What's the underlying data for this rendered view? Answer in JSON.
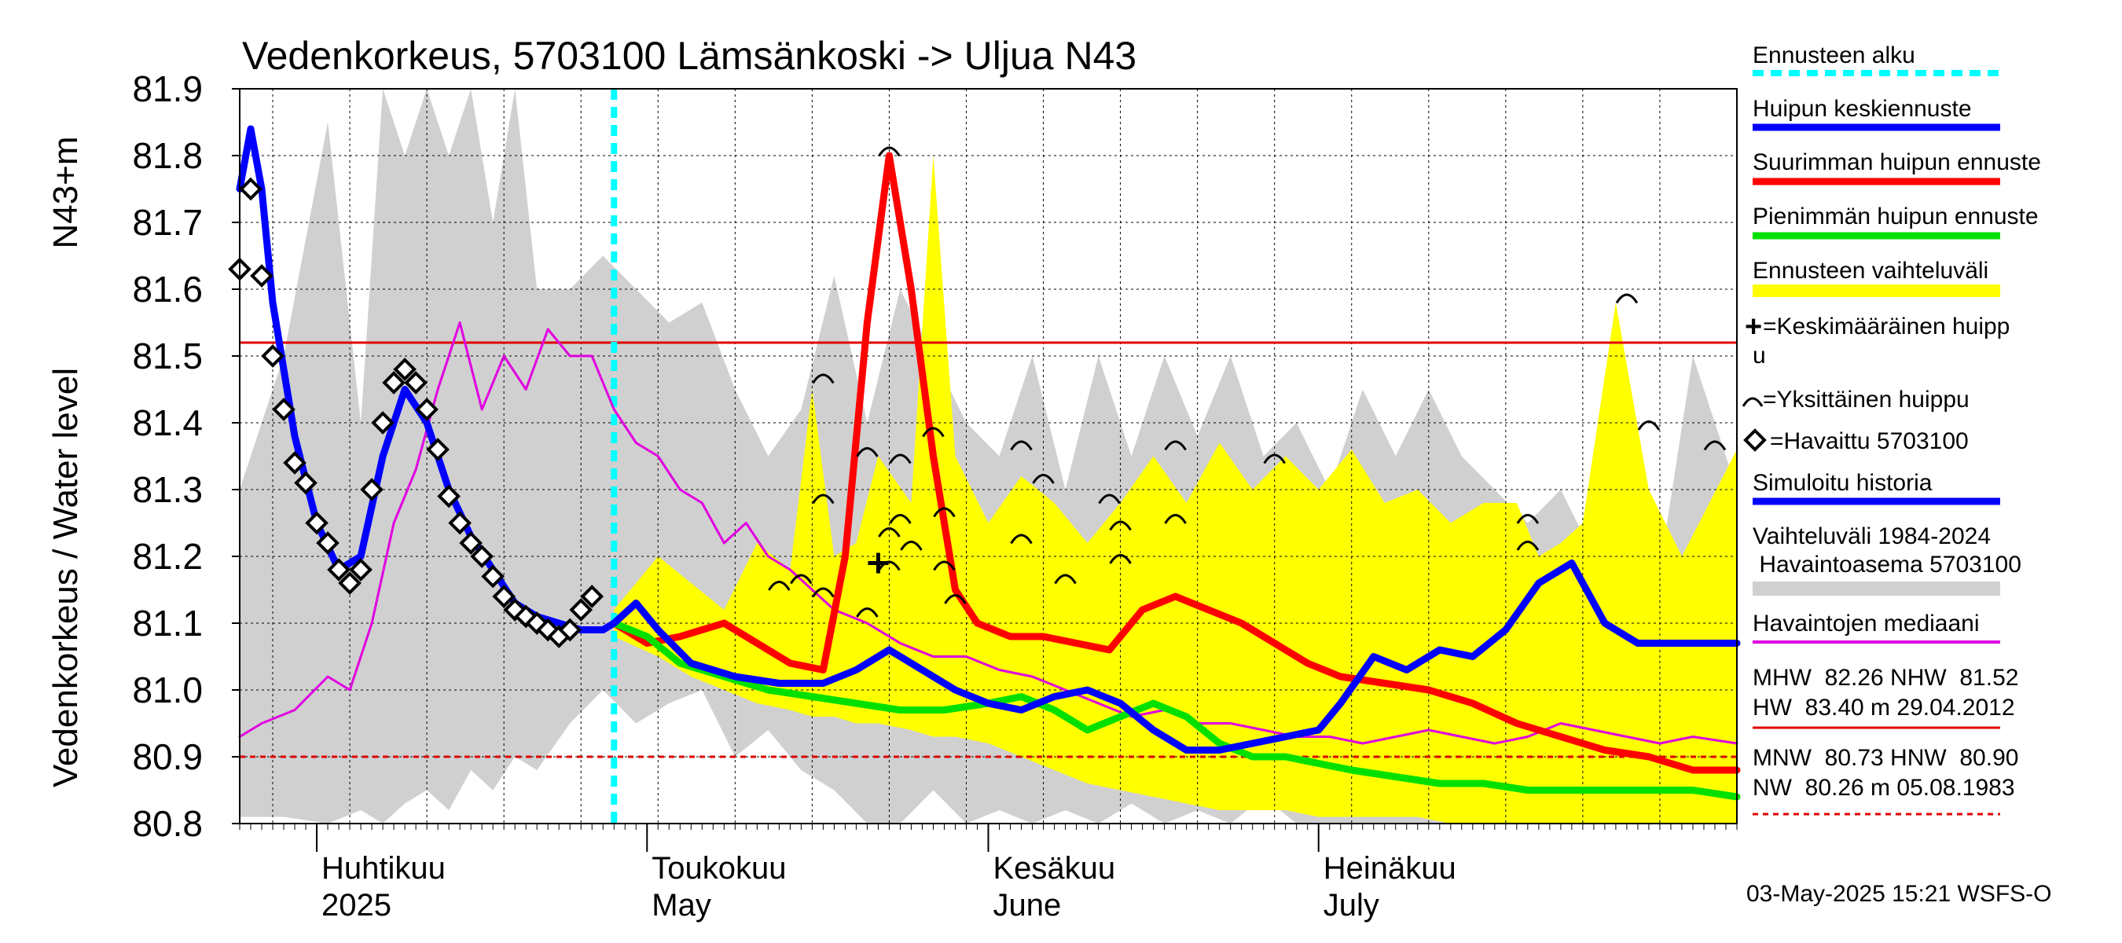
{
  "chart_data": {
    "type": "line",
    "title": "Vedenkorkeus, 5703100 Lämsänkoski -> Uljua N43",
    "ylabel_left": "Vedenkorkeus / Water level",
    "ylabel_unit": "N43+m",
    "ylim": [
      80.8,
      81.9
    ],
    "yticks": [
      80.8,
      80.9,
      81.0,
      81.1,
      81.2,
      81.3,
      81.4,
      81.5,
      81.6,
      81.7,
      81.8,
      81.9
    ],
    "ytick_labels": [
      "80.8",
      "80.9",
      "81.0",
      "81.1",
      "81.2",
      "81.3",
      "81.4",
      "81.5",
      "81.6",
      "81.7",
      "81.8",
      "81.9"
    ],
    "xlim": [
      "2025-03-25",
      "2025-08-08"
    ],
    "x_axis_labels": [
      {
        "date": "2025-04-01",
        "fi": "Huhtikuu",
        "en": "2025"
      },
      {
        "date": "2025-05-01",
        "fi": "Toukokuu",
        "en": "May"
      },
      {
        "date": "2025-06-01",
        "fi": "Kesäkuu",
        "en": "June"
      },
      {
        "date": "2025-07-01",
        "fi": "Heinäkuu",
        "en": "July"
      }
    ],
    "forecast_start": "2025-04-28",
    "grid": true,
    "reference_lines": [
      {
        "name": "NHW",
        "value": 81.52,
        "style": "solid",
        "color": "#e00000"
      },
      {
        "name": "HNW",
        "value": 80.9,
        "style": "dashed",
        "color": "#e00000"
      }
    ],
    "series": [
      {
        "name": "Vaihteluväli 1984-2024 Havaintoasema 5703100",
        "kind": "band",
        "color": "#d0d0d0",
        "x": [
          "2025-03-25",
          "2025-03-29",
          "2025-04-02",
          "2025-04-05",
          "2025-04-07",
          "2025-04-09",
          "2025-04-11",
          "2025-04-13",
          "2025-04-15",
          "2025-04-17",
          "2025-04-19",
          "2025-04-21",
          "2025-04-24",
          "2025-04-27",
          "2025-04-30",
          "2025-05-03",
          "2025-05-06",
          "2025-05-09",
          "2025-05-12",
          "2025-05-15",
          "2025-05-18",
          "2025-05-21",
          "2025-05-24",
          "2025-05-27",
          "2025-05-30",
          "2025-06-02",
          "2025-06-05",
          "2025-06-08",
          "2025-06-11",
          "2025-06-14",
          "2025-06-17",
          "2025-06-20",
          "2025-06-23",
          "2025-06-26",
          "2025-06-29",
          "2025-07-02",
          "2025-07-05",
          "2025-07-08",
          "2025-07-11",
          "2025-07-14",
          "2025-07-17",
          "2025-07-20",
          "2025-07-23",
          "2025-07-26",
          "2025-07-29",
          "2025-08-01",
          "2025-08-04",
          "2025-08-08"
        ],
        "upper": [
          81.3,
          81.5,
          81.85,
          81.4,
          81.9,
          81.8,
          81.9,
          81.8,
          81.9,
          81.7,
          81.9,
          81.6,
          81.6,
          81.65,
          81.6,
          81.55,
          81.58,
          81.45,
          81.35,
          81.42,
          81.62,
          81.4,
          81.6,
          81.5,
          81.4,
          81.35,
          81.5,
          81.3,
          81.5,
          81.35,
          81.5,
          81.38,
          81.5,
          81.35,
          81.4,
          81.3,
          81.45,
          81.35,
          81.45,
          81.35,
          81.3,
          81.25,
          81.3,
          81.2,
          81.25,
          81.18,
          81.5,
          81.3
        ],
        "lower": [
          80.81,
          80.81,
          80.8,
          80.82,
          80.8,
          80.83,
          80.85,
          80.82,
          80.88,
          80.85,
          80.9,
          80.88,
          80.95,
          81.0,
          80.95,
          80.98,
          81.0,
          80.9,
          80.94,
          80.88,
          80.85,
          80.8,
          80.8,
          80.85,
          80.8,
          80.82,
          80.8,
          80.82,
          80.8,
          80.83,
          80.8,
          80.82,
          80.8,
          80.84,
          80.8,
          80.8,
          80.8,
          80.8,
          80.8,
          80.8,
          80.8,
          80.8,
          80.8,
          80.8,
          80.8,
          80.8,
          80.8,
          80.8
        ]
      },
      {
        "name": "Ennusteen vaihteluväli",
        "kind": "band",
        "color": "#ffff00",
        "x": [
          "2025-04-28",
          "2025-05-02",
          "2025-05-05",
          "2025-05-08",
          "2025-05-11",
          "2025-05-14",
          "2025-05-16",
          "2025-05-18",
          "2025-05-20",
          "2025-05-22",
          "2025-05-25",
          "2025-05-27",
          "2025-05-29",
          "2025-06-01",
          "2025-06-04",
          "2025-06-07",
          "2025-06-10",
          "2025-06-13",
          "2025-06-16",
          "2025-06-19",
          "2025-06-22",
          "2025-06-25",
          "2025-06-28",
          "2025-07-01",
          "2025-07-04",
          "2025-07-07",
          "2025-07-10",
          "2025-07-13",
          "2025-07-16",
          "2025-07-19",
          "2025-07-21",
          "2025-07-23",
          "2025-07-25",
          "2025-07-28",
          "2025-07-31",
          "2025-08-03",
          "2025-08-08"
        ],
        "upper": [
          81.12,
          81.2,
          81.16,
          81.12,
          81.22,
          81.18,
          81.45,
          81.2,
          81.22,
          81.35,
          81.28,
          81.8,
          81.35,
          81.25,
          81.32,
          81.28,
          81.22,
          81.28,
          81.35,
          81.28,
          81.37,
          81.3,
          81.35,
          81.3,
          81.36,
          81.28,
          81.3,
          81.25,
          81.28,
          81.28,
          81.2,
          81.22,
          81.25,
          81.58,
          81.3,
          81.2,
          81.36
        ],
        "lower": [
          81.08,
          81.05,
          81.02,
          81.0,
          80.98,
          80.97,
          80.96,
          80.96,
          80.95,
          80.95,
          80.94,
          80.93,
          80.93,
          80.92,
          80.9,
          80.88,
          80.86,
          80.85,
          80.84,
          80.83,
          80.82,
          80.82,
          80.82,
          80.81,
          80.81,
          80.81,
          80.81,
          80.8,
          80.8,
          80.8,
          80.8,
          80.8,
          80.8,
          80.8,
          80.8,
          80.8,
          80.8
        ]
      },
      {
        "name": "Havaintojen mediaani",
        "kind": "line",
        "color": "#e000e0",
        "x": [
          "2025-03-25",
          "2025-03-27",
          "2025-03-30",
          "2025-04-02",
          "2025-04-04",
          "2025-04-06",
          "2025-04-08",
          "2025-04-10",
          "2025-04-12",
          "2025-04-14",
          "2025-04-16",
          "2025-04-18",
          "2025-04-20",
          "2025-04-22",
          "2025-04-24",
          "2025-04-26",
          "2025-04-28",
          "2025-04-30",
          "2025-05-02",
          "2025-05-04",
          "2025-05-06",
          "2025-05-08",
          "2025-05-10",
          "2025-05-12",
          "2025-05-14",
          "2025-05-16",
          "2025-05-18",
          "2025-05-21",
          "2025-05-24",
          "2025-05-27",
          "2025-05-30",
          "2025-06-02",
          "2025-06-05",
          "2025-06-08",
          "2025-06-11",
          "2025-06-14",
          "2025-06-17",
          "2025-06-20",
          "2025-06-23",
          "2025-06-26",
          "2025-06-29",
          "2025-07-02",
          "2025-07-05",
          "2025-07-08",
          "2025-07-11",
          "2025-07-14",
          "2025-07-17",
          "2025-07-20",
          "2025-07-23",
          "2025-07-26",
          "2025-07-29",
          "2025-08-01",
          "2025-08-04",
          "2025-08-08"
        ],
        "values": [
          80.93,
          80.95,
          80.97,
          81.02,
          81.0,
          81.1,
          81.25,
          81.33,
          81.45,
          81.55,
          81.42,
          81.5,
          81.45,
          81.54,
          81.5,
          81.5,
          81.42,
          81.37,
          81.35,
          81.3,
          81.28,
          81.22,
          81.25,
          81.2,
          81.18,
          81.15,
          81.12,
          81.1,
          81.07,
          81.05,
          81.05,
          81.03,
          81.02,
          81.0,
          80.98,
          80.96,
          80.97,
          80.95,
          80.95,
          80.94,
          80.93,
          80.93,
          80.92,
          80.93,
          80.94,
          80.93,
          80.92,
          80.93,
          80.95,
          80.94,
          80.93,
          80.92,
          80.93,
          80.92
        ]
      },
      {
        "name": "Suurimman huipun ennuste",
        "kind": "line",
        "color": "#ff0000",
        "x": [
          "2025-04-28",
          "2025-05-01",
          "2025-05-04",
          "2025-05-08",
          "2025-05-11",
          "2025-05-14",
          "2025-05-17",
          "2025-05-19",
          "2025-05-21",
          "2025-05-23",
          "2025-05-25",
          "2025-05-27",
          "2025-05-29",
          "2025-05-31",
          "2025-06-03",
          "2025-06-06",
          "2025-06-09",
          "2025-06-12",
          "2025-06-15",
          "2025-06-18",
          "2025-06-21",
          "2025-06-24",
          "2025-06-27",
          "2025-06-30",
          "2025-07-03",
          "2025-07-07",
          "2025-07-11",
          "2025-07-15",
          "2025-07-19",
          "2025-07-23",
          "2025-07-27",
          "2025-07-31",
          "2025-08-04",
          "2025-08-08"
        ],
        "values": [
          81.1,
          81.07,
          81.08,
          81.1,
          81.07,
          81.04,
          81.03,
          81.2,
          81.55,
          81.8,
          81.6,
          81.35,
          81.15,
          81.1,
          81.08,
          81.08,
          81.07,
          81.06,
          81.12,
          81.14,
          81.12,
          81.1,
          81.07,
          81.04,
          81.02,
          81.01,
          81.0,
          80.98,
          80.95,
          80.93,
          80.91,
          80.9,
          80.88,
          80.88
        ]
      },
      {
        "name": "Pienimmän huipun ennuste",
        "kind": "line",
        "color": "#00e000",
        "x": [
          "2025-04-28",
          "2025-05-01",
          "2025-05-04",
          "2025-05-08",
          "2025-05-12",
          "2025-05-16",
          "2025-05-20",
          "2025-05-24",
          "2025-05-28",
          "2025-06-01",
          "2025-06-04",
          "2025-06-07",
          "2025-06-10",
          "2025-06-13",
          "2025-06-16",
          "2025-06-19",
          "2025-06-22",
          "2025-06-25",
          "2025-06-28",
          "2025-07-01",
          "2025-07-04",
          "2025-07-08",
          "2025-07-12",
          "2025-07-16",
          "2025-07-20",
          "2025-07-24",
          "2025-07-28",
          "2025-08-01",
          "2025-08-04",
          "2025-08-08"
        ],
        "values": [
          81.1,
          81.08,
          81.04,
          81.02,
          81.0,
          80.99,
          80.98,
          80.97,
          80.97,
          80.98,
          80.99,
          80.97,
          80.94,
          80.96,
          80.98,
          80.96,
          80.92,
          80.9,
          80.9,
          80.89,
          80.88,
          80.87,
          80.86,
          80.86,
          80.85,
          80.85,
          80.85,
          80.85,
          80.85,
          80.84
        ]
      },
      {
        "name": "Huipun keskiennuste",
        "kind": "line",
        "color": "#0000ff",
        "x": [
          "2025-03-25",
          "2025-03-26",
          "2025-03-27",
          "2025-03-28",
          "2025-03-30",
          "2025-04-01",
          "2025-04-03",
          "2025-04-05",
          "2025-04-07",
          "2025-04-09",
          "2025-04-11",
          "2025-04-13",
          "2025-04-15",
          "2025-04-17",
          "2025-04-19",
          "2025-04-21",
          "2025-04-23",
          "2025-04-25",
          "2025-04-27",
          "2025-04-28",
          "2025-04-30",
          "2025-05-02",
          "2025-05-05",
          "2025-05-09",
          "2025-05-13",
          "2025-05-17",
          "2025-05-20",
          "2025-05-23",
          "2025-05-26",
          "2025-05-29",
          "2025-06-01",
          "2025-06-04",
          "2025-06-07",
          "2025-06-10",
          "2025-06-13",
          "2025-06-16",
          "2025-06-19",
          "2025-06-22",
          "2025-06-25",
          "2025-06-28",
          "2025-07-01",
          "2025-07-03",
          "2025-07-06",
          "2025-07-09",
          "2025-07-12",
          "2025-07-15",
          "2025-07-18",
          "2025-07-21",
          "2025-07-24",
          "2025-07-27",
          "2025-07-30",
          "2025-08-03",
          "2025-08-08"
        ],
        "values": [
          81.75,
          81.84,
          81.75,
          81.58,
          81.38,
          81.25,
          81.18,
          81.2,
          81.35,
          81.45,
          81.4,
          81.3,
          81.23,
          81.18,
          81.13,
          81.11,
          81.1,
          81.09,
          81.09,
          81.1,
          81.13,
          81.09,
          81.04,
          81.02,
          81.01,
          81.01,
          81.03,
          81.06,
          81.03,
          81.0,
          80.98,
          80.97,
          80.99,
          81.0,
          80.98,
          80.94,
          80.91,
          80.91,
          80.92,
          80.93,
          80.94,
          80.98,
          81.05,
          81.03,
          81.06,
          81.05,
          81.09,
          81.16,
          81.19,
          81.1,
          81.07,
          81.07,
          81.07
        ]
      },
      {
        "name": "Havaittu 5703100",
        "kind": "markers",
        "marker": "diamond",
        "color": "#000000",
        "x": [
          "2025-03-25",
          "2025-03-26",
          "2025-03-27",
          "2025-03-28",
          "2025-03-29",
          "2025-03-30",
          "2025-03-31",
          "2025-04-01",
          "2025-04-02",
          "2025-04-03",
          "2025-04-04",
          "2025-04-05",
          "2025-04-06",
          "2025-04-07",
          "2025-04-08",
          "2025-04-09",
          "2025-04-10",
          "2025-04-11",
          "2025-04-12",
          "2025-04-13",
          "2025-04-14",
          "2025-04-15",
          "2025-04-16",
          "2025-04-17",
          "2025-04-18",
          "2025-04-19",
          "2025-04-20",
          "2025-04-21",
          "2025-04-22",
          "2025-04-23",
          "2025-04-24",
          "2025-04-25",
          "2025-04-26"
        ],
        "values": [
          81.63,
          81.75,
          81.62,
          81.5,
          81.42,
          81.34,
          81.31,
          81.25,
          81.22,
          81.18,
          81.16,
          81.18,
          81.3,
          81.4,
          81.46,
          81.48,
          81.46,
          81.42,
          81.36,
          81.29,
          81.25,
          81.22,
          81.2,
          81.17,
          81.14,
          81.12,
          81.11,
          81.1,
          81.09,
          81.08,
          81.09,
          81.12,
          81.14
        ]
      },
      {
        "name": "Yksittäinen huippu",
        "kind": "markers",
        "marker": "arc",
        "color": "#000000",
        "x": [
          "2025-05-17",
          "2025-05-17",
          "2025-05-17",
          "2025-05-15",
          "2025-05-13",
          "2025-05-21",
          "2025-05-21",
          "2025-05-23",
          "2025-05-24",
          "2025-05-24",
          "2025-05-23",
          "2025-05-23",
          "2025-05-25",
          "2025-05-27",
          "2025-05-28",
          "2025-05-28",
          "2025-05-29",
          "2025-06-04",
          "2025-06-06",
          "2025-06-04",
          "2025-06-08",
          "2025-06-12",
          "2025-06-13",
          "2025-06-13",
          "2025-06-18",
          "2025-06-18",
          "2025-06-27",
          "2025-07-20",
          "2025-07-20",
          "2025-07-29",
          "2025-07-31",
          "2025-08-06"
        ],
        "values": [
          81.47,
          81.29,
          81.15,
          81.17,
          81.16,
          81.36,
          81.12,
          81.81,
          81.35,
          81.26,
          81.24,
          81.19,
          81.22,
          81.39,
          81.27,
          81.19,
          81.14,
          81.37,
          81.32,
          81.23,
          81.17,
          81.29,
          81.25,
          81.2,
          81.37,
          81.26,
          81.35,
          81.26,
          81.22,
          81.59,
          81.4,
          81.37
        ]
      },
      {
        "name": "Keskimääräinen huippu",
        "kind": "markers",
        "marker": "plus",
        "color": "#000000",
        "x": [
          "2025-05-22"
        ],
        "values": [
          81.19
        ]
      }
    ],
    "legend": {
      "placement": "right",
      "forecast_start": "Ennusteen alku",
      "mean_forecast": "Huipun keskiennuste",
      "max_forecast": "Suurimman huipun ennuste",
      "min_forecast": "Pienimmän huipun ennuste",
      "forecast_range": "Ennusteen vaihteluväli",
      "mean_peak_a": "=Keskimääräinen huipp",
      "mean_peak_b": "u",
      "single_peak": "=Yksittäinen huippu",
      "observed": "=Havaittu 5703100",
      "simulated": "Simuloitu historia",
      "range_line1": "Vaihteluväli 1984-2024",
      "range_line2": " Havaintoasema 5703100",
      "median": "Havaintojen mediaani",
      "stats_high_1": "MHW  82.26 NHW  81.52",
      "stats_high_2": "HW  83.40 m 29.04.2012",
      "stats_low_1": "MNW  80.73 HNW  80.90",
      "stats_low_2": "NW  80.26 m 05.08.1983"
    },
    "footer": "03-May-2025 15:21 WSFS-O"
  }
}
